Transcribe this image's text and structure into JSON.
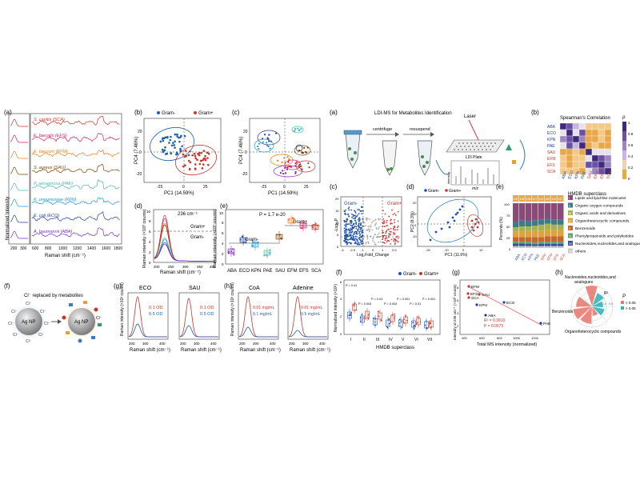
{
  "left_figure": {
    "panels": {
      "a": "(a)",
      "b": "(b)",
      "c": "(c)",
      "d": "(d)",
      "e": "(e)",
      "f": "(f)",
      "g": "(g)",
      "h": "(h)"
    },
    "a": {
      "ylabel": "Normalized Intensity",
      "xlabel": "Raman shift (cm⁻¹)",
      "inset_ticks": [
        "200",
        "300"
      ],
      "xticks": [
        "600",
        "800",
        "1000",
        "1200",
        "1400",
        "1600",
        "1800"
      ],
      "species": [
        {
          "label": "S. capitis (SCA)",
          "color": "#c0392b"
        },
        {
          "label": "E. faecalis (EFS)",
          "color": "#d81b60"
        },
        {
          "label": "E. faecium (EFM)",
          "color": "#e67e22"
        },
        {
          "label": "S. aureus (SAU)",
          "color": "#7b3f00"
        },
        {
          "label": "P. aeruginosa (PAE)",
          "color": "#4db6ac"
        },
        {
          "label": "K. pneumoniae (KPN)",
          "color": "#1f9ad6"
        },
        {
          "label": "E. coli (ECO)",
          "color": "#1f3d99"
        },
        {
          "label": "A. baumannii (ABA)",
          "color": "#7b2cbf"
        }
      ]
    },
    "b": {
      "legend": [
        "Gram-",
        "Gram+"
      ],
      "colors": {
        "neg": "#1f5fa8",
        "pos": "#c0392b"
      },
      "xlabel": "PC1 (14.59%)",
      "ylabel": "PC4 (7.46%)",
      "xticks": [
        "-25",
        "0",
        "25"
      ],
      "yticks": [
        "20",
        "0",
        "-20"
      ]
    },
    "c": {
      "xlabel": "PC1 (14.59%)",
      "ylabel": "PC4 (7.46%)",
      "xticks": [
        "-25",
        "0",
        "25"
      ],
      "yticks": [
        "20",
        "0",
        "-20"
      ]
    },
    "d": {
      "peak": "236 cm⁻¹",
      "pos": "Gram+",
      "neg": "Gram-",
      "ylabel": "Raman intensity (×10³ counts)",
      "xlabel": "Raman shift (cm⁻¹)",
      "yticks": [
        "0",
        "2",
        "4",
        "6",
        "8",
        "10"
      ],
      "xticks": [
        "200",
        "250",
        "300",
        "350",
        "400"
      ]
    },
    "e": {
      "pvalue": "P = 1.7 e-20",
      "pos": "Gram+",
      "neg": "Gram-",
      "ylabel": "Raman intensity (×10³ counts)",
      "yticks": [
        "0",
        "2",
        "4",
        "6",
        "8",
        "10"
      ],
      "categories": [
        "ABA",
        "ECO",
        "KPN",
        "PAE",
        "SAU",
        "EFM",
        "EFS",
        "SCA"
      ]
    },
    "f": {
      "title": "Cl⁻ replaced by metabolites",
      "core": "Ag NP",
      "ion": "Cl⁻"
    },
    "g": {
      "ylabel": "Raman intensity (×10³ counts)",
      "xlabel": "Raman shift (cm⁻¹)",
      "plots": [
        {
          "title": "ECO",
          "l1": "0.1 OD",
          "l2": "0.5 OD"
        },
        {
          "title": "SAU",
          "l1": "0.1 OD",
          "l2": "0.5 OD"
        }
      ],
      "xticks": [
        "200",
        "300",
        "400"
      ],
      "yticks": [
        "0",
        "2",
        "4",
        "6"
      ]
    },
    "h": {
      "ylabel": "Raman intensity (×10³ counts)",
      "xlabel": "Raman shift (cm⁻¹)",
      "plots": [
        {
          "title": "CoA",
          "l1": "0.01 mg/mL",
          "l2": "0.1 mg/mL"
        },
        {
          "title": "Adenine",
          "l1": "0.01 mg/mL",
          "l2": "0.5 mg/mL"
        }
      ],
      "xticks": [
        "200",
        "300",
        "400"
      ],
      "yticks": [
        "0",
        "2",
        "4",
        "6"
      ]
    }
  },
  "right_figure": {
    "panels": {
      "a": "(a)",
      "b": "(b)",
      "c": "(c)",
      "d": "(d)",
      "e": "(e)",
      "f": "(f)",
      "g": "(g)",
      "h": "(h)"
    },
    "a": {
      "title": "LDI-MS for Metabolites Identification",
      "centrifuge": "centrifuge",
      "resuspend": "resuspend",
      "laser": "Laser",
      "plate": "LDI Plate",
      "mz": "m/z",
      "intensity": "intensity"
    },
    "b": {
      "title": "Spearman's Correlation",
      "rho": "ρ",
      "scale": [
        "1",
        "0.8",
        "0.6",
        "0.4",
        "0.2",
        "0"
      ],
      "labels": [
        "ABA",
        "ECO",
        "KPN",
        "PAE",
        "SAU",
        "EFM",
        "EFS",
        "SCA"
      ]
    },
    "c": {
      "neg": "Gram-",
      "pos": "Gram+",
      "xlabel": "Log₂Fold_Change",
      "ylabel": "-Log₁₀P",
      "xticks": [
        "-4",
        "-2.5",
        "-1",
        "0",
        "1",
        "2.5"
      ],
      "yticks": [
        "0",
        "5",
        "10",
        "15",
        "20"
      ]
    },
    "d": {
      "legend": [
        "Gram-",
        "Gram+"
      ],
      "xlabel": "PC1 (11.6%)",
      "ylabel": "PC2 (8.3%)",
      "xticks": [
        "-20",
        "-10",
        "0",
        "10"
      ],
      "yticks": [
        "20",
        "10",
        "0",
        "-10"
      ]
    },
    "e": {
      "ylabel": "Percents (%)",
      "yticks": [
        "100",
        "75",
        "50",
        "25",
        "0"
      ],
      "legend_title": "HMDB superclass",
      "classes": [
        {
          "num": "I",
          "label": "Lipids and lipid-like molecules",
          "color": "#8b4a7a"
        },
        {
          "num": "II",
          "label": "Organic oxygen compounds",
          "color": "#3d7a8a"
        },
        {
          "num": "III",
          "label": "Organic acids and derivatives",
          "color": "#a8b44a"
        },
        {
          "num": "IV",
          "label": "Organoheterocyclic compounds",
          "color": "#e0a33c"
        },
        {
          "num": "V",
          "label": "Benzenoids",
          "color": "#c9652f"
        },
        {
          "num": "VI",
          "label": "Phenylpropanoids and polyketides",
          "color": "#5ba36b"
        },
        {
          "num": "VII",
          "label": "Nucleosides,nucleotides,and analogues",
          "color": "#3a4f9c"
        },
        {
          "num": "VIII",
          "label": "others",
          "color": "#c8c8c8"
        }
      ],
      "counts": [
        "134",
        "128",
        "135",
        "147",
        "142",
        "149",
        "143",
        "147"
      ],
      "bars": [
        "ABA",
        "ECO",
        "KPN",
        "PAE",
        "SAU",
        "EFM",
        "EFS",
        "SCA"
      ]
    },
    "f": {
      "legend": [
        "Gram-",
        "Gram+"
      ],
      "ylabel": "Normalized intensity (×10³)",
      "xlabel": "HMDB superclass",
      "xticks": [
        "I",
        "II",
        "III",
        "IV",
        "V",
        "VI",
        "VII"
      ],
      "pvals": [
        "P = 0.41",
        "P = 0.003",
        "P = 0.04",
        "P = 0.003",
        "P = 0.001",
        "P = 0.01",
        "P = 0.001"
      ],
      "yticks": [
        "0",
        "2",
        "4",
        "6"
      ]
    },
    "g": {
      "ylabel": "Intensity at 236 cm⁻¹ (×10³ counts)",
      "xlabel": "Total MS intensity (normalized)",
      "points": [
        "EFM",
        "EFS",
        "SCA",
        "SAU",
        "ECO",
        "KPN",
        "ABA",
        "PAE"
      ],
      "r2": "R² = 0.3910",
      "p": "P = 0.0575",
      "xticks": [
        "400",
        "600",
        "800",
        "1000",
        "1200"
      ],
      "yticks": [
        "8",
        "6",
        "4",
        "2"
      ]
    },
    "h": {
      "l1": "Nucleosides,nucleotides,and",
      "l2": "analogues",
      "benz": "Benzenoids",
      "org": "Organoheterocyclic compounds",
      "r2": "R²",
      "p_title": "P",
      "p_lt": "< 0.05",
      "p_gt": "> 0.05",
      "ring_ticks": [
        "0.5",
        "0.4",
        "0.3"
      ]
    }
  }
}
